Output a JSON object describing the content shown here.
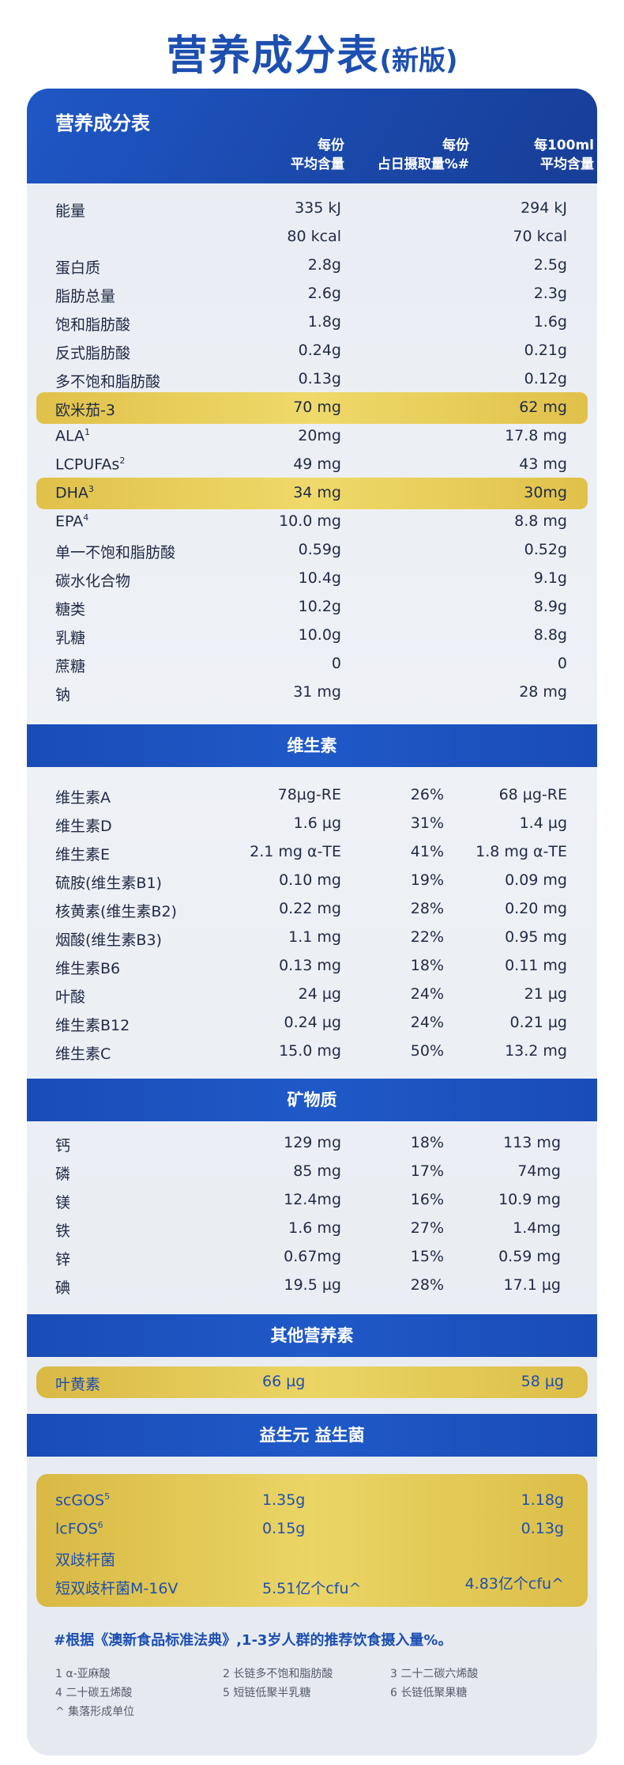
{
  "title": {
    "main": "营养成分表",
    "sub": "(新版)"
  },
  "header": {
    "table_title": "营养成分表",
    "col1": [
      "每份",
      "平均含量"
    ],
    "col2": [
      "每份",
      "占日摄取量%#"
    ],
    "col3": [
      "每100ml",
      "平均含量"
    ]
  },
  "nutrients": [
    {
      "label": "能量",
      "per_serving": "335 kJ",
      "per_100ml": "294 kJ"
    },
    {
      "label": "",
      "per_serving": "80 kcal",
      "per_100ml": "70 kcal"
    },
    {
      "label": "蛋白质",
      "per_serving": "2.8g",
      "per_100ml": "2.5g"
    },
    {
      "label": "脂肪总量",
      "per_serving": "2.6g",
      "per_100ml": "2.3g"
    },
    {
      "label": "饱和脂肪酸",
      "per_serving": "1.8g",
      "per_100ml": "1.6g"
    },
    {
      "label": "反式脂肪酸",
      "per_serving": "0.24g",
      "per_100ml": "0.21g"
    },
    {
      "label": "多不饱和脂肪酸",
      "per_serving": "0.13g",
      "per_100ml": "0.12g"
    },
    {
      "label": "欧米茄-3",
      "per_serving": "70 mg",
      "per_100ml": "62 mg"
    },
    {
      "label": "ALA",
      "sup": "1",
      "per_serving": "20mg",
      "per_100ml": "17.8 mg"
    },
    {
      "label": "LCPUFAs",
      "sup": "2",
      "per_serving": "49 mg",
      "per_100ml": "43 mg"
    },
    {
      "label": "DHA",
      "sup": "3",
      "per_serving": "34 mg",
      "per_100ml": "30mg"
    },
    {
      "label": "EPA",
      "sup": "4",
      "per_serving": "10.0 mg",
      "per_100ml": "8.8 mg"
    },
    {
      "label": "单一不饱和脂肪酸",
      "per_serving": "0.59g",
      "per_100ml": "0.52g"
    },
    {
      "label": "碳水化合物",
      "per_serving": "10.4g",
      "per_100ml": "9.1g"
    },
    {
      "label": "糖类",
      "per_serving": "10.2g",
      "per_100ml": "8.9g"
    },
    {
      "label": "乳糖",
      "per_serving": "10.0g",
      "per_100ml": "8.8g"
    },
    {
      "label": "蔗糖",
      "per_serving": "0",
      "per_100ml": "0"
    },
    {
      "label": "钠",
      "per_serving": "31 mg",
      "per_100ml": "28 mg"
    }
  ],
  "vitamins": {
    "title": "维生素",
    "rows": [
      {
        "label": "维生素A",
        "per_serving": "78µg-RE",
        "dv": "26%",
        "per_100ml": "68 µg-RE"
      },
      {
        "label": "维生素D",
        "per_serving": "1.6 µg",
        "dv": "31%",
        "per_100ml": "1.4 µg"
      },
      {
        "label": "维生素E",
        "per_serving": "2.1 mg α-TE",
        "dv": "41%",
        "per_100ml": "1.8 mg α-TE"
      },
      {
        "label": "硫胺(维生素B1)",
        "per_serving": "0.10 mg",
        "dv": "19%",
        "per_100ml": "0.09 mg"
      },
      {
        "label": "核黄素(维生素B2)",
        "per_serving": "0.22 mg",
        "dv": "28%",
        "per_100ml": "0.20 mg"
      },
      {
        "label": "烟酸(维生素B3)",
        "per_serving": "1.1 mg",
        "dv": "22%",
        "per_100ml": "0.95 mg"
      },
      {
        "label": "维生素B6",
        "per_serving": "0.13 mg",
        "dv": "18%",
        "per_100ml": "0.11 mg"
      },
      {
        "label": "叶酸",
        "per_serving": "24 µg",
        "dv": "24%",
        "per_100ml": "21 µg"
      },
      {
        "label": "维生素B12",
        "per_serving": "0.24 µg",
        "dv": "24%",
        "per_100ml": "0.21 µg"
      },
      {
        "label": "维生素C",
        "per_serving": "15.0 mg",
        "dv": "50%",
        "per_100ml": "13.2 mg"
      }
    ]
  },
  "minerals": {
    "title": "矿物质",
    "rows": [
      {
        "label": "钙",
        "per_serving": "129 mg",
        "dv": "18%",
        "per_100ml": "113 mg"
      },
      {
        "label": "磷",
        "per_serving": "85 mg",
        "dv": "17%",
        "per_100ml": "74mg"
      },
      {
        "label": "镁",
        "per_serving": "12.4mg",
        "dv": "16%",
        "per_100ml": "10.9 mg"
      },
      {
        "label": "铁",
        "per_serving": "1.6 mg",
        "dv": "27%",
        "per_100ml": "1.4mg"
      },
      {
        "label": "锌",
        "per_serving": "0.67mg",
        "dv": "15%",
        "per_100ml": "0.59 mg"
      },
      {
        "label": "碘",
        "per_serving": "19.5 µg",
        "dv": "28%",
        "per_100ml": "17.1 µg"
      }
    ]
  },
  "other": {
    "title": "其他营养素",
    "rows": [
      {
        "label": "叶黄素",
        "per_serving": "66 µg",
        "per_100ml": "58 µg"
      }
    ]
  },
  "probiotics": {
    "title": "益生元 益生菌",
    "rows": [
      {
        "label": "scGOS",
        "sup": "5",
        "per_serving": "1.35g",
        "per_100ml": "1.18g"
      },
      {
        "label": "lcFOS",
        "sup": "6",
        "per_serving": "0.15g",
        "per_100ml": "0.13g"
      },
      {
        "label": "双歧杆菌",
        "per_serving": "",
        "per_100ml": ""
      },
      {
        "label": "短双歧杆菌M-16V",
        "per_serving": "5.51亿个cfu^",
        "per_100ml": "4.83亿个cfu^"
      }
    ]
  },
  "note": "#根据《澳新食品标准法典》,1-3岁人群的推荐饮食摄入量%。",
  "footnotes": [
    "1 α-亚麻酸",
    "2 长链多不饱和脂肪酸",
    "3 二十二碳六烯酸",
    "4 二十碳五烯酸",
    "5 短链低聚半乳糖",
    "6 长链低聚果糖",
    "^ 集落形成单位"
  ],
  "colors": {
    "brand_blue": "#1d4fb0",
    "highlight_gold": "#e6cc5a",
    "panel_bg": "#e9edf3"
  }
}
